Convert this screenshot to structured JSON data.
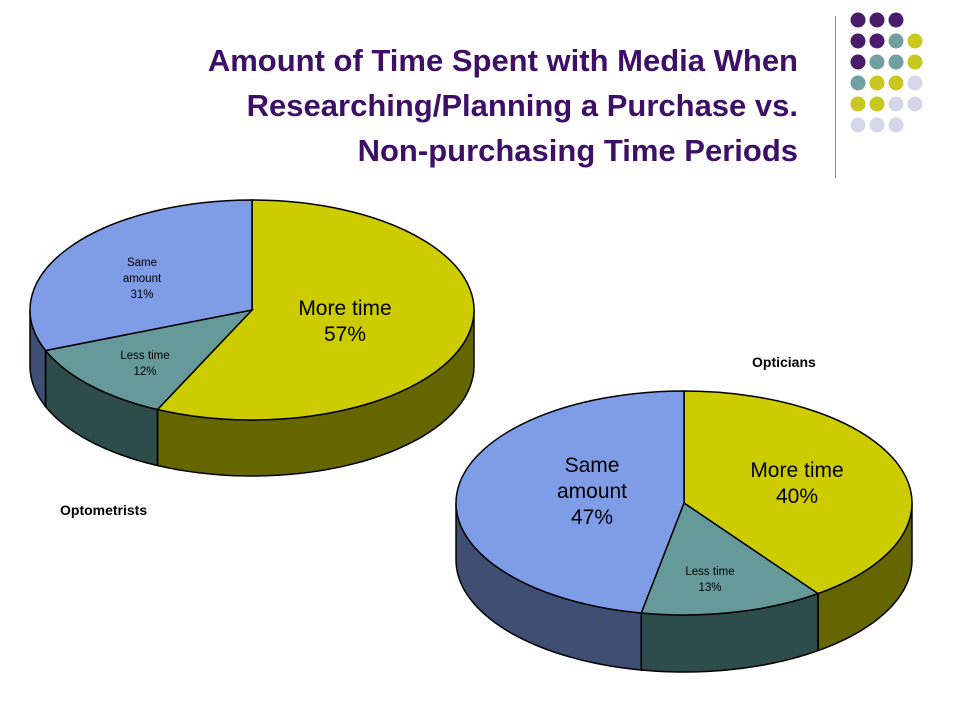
{
  "slide": {
    "title_lines": [
      "Amount of Time Spent with Media When",
      "Researching/Planning a Purchase vs.",
      "Non-purchasing Time Periods"
    ]
  },
  "decor": {
    "dot_rows": [
      [
        "purple",
        "purple",
        "purple"
      ],
      [
        "purple",
        "purple",
        "teal",
        "lime"
      ],
      [
        "purple",
        "teal",
        "teal",
        "lime"
      ],
      [
        "teal",
        "lime",
        "lime",
        "lavender"
      ],
      [
        "lime",
        "lime",
        "lavender",
        "lavender"
      ],
      [
        "lavender",
        "lavender",
        "lavender"
      ]
    ],
    "dot_colors": {
      "purple": "#4a1a6b",
      "teal": "#6f9fa0",
      "lime": "#c8c820",
      "lavender": "#d6d6ea"
    }
  },
  "chart_data": [
    {
      "type": "pie",
      "title": "Optometrists",
      "style": "3d",
      "slices": [
        {
          "label_line1": "More time",
          "label_line2": "57%",
          "value": 57,
          "color": "#cccc00",
          "side_color": "#666600"
        },
        {
          "label_line1": "Less time",
          "label_line2": "12%",
          "value": 12,
          "color": "#669999",
          "side_color": "#2f4c4c"
        },
        {
          "label_line1": "Same amount",
          "label_line2": "31%",
          "value": 31,
          "color": "#7f9ce6",
          "side_color": "#3f4e73"
        }
      ]
    },
    {
      "type": "pie",
      "title": "Opticians",
      "style": "3d",
      "slices": [
        {
          "label_line1": "More time",
          "label_line2": "40%",
          "value": 40,
          "color": "#cccc00",
          "side_color": "#666600"
        },
        {
          "label_line1": "Less time",
          "label_line2": "13%",
          "value": 13,
          "color": "#669999",
          "side_color": "#2f4c4c"
        },
        {
          "label_line1": "Same amount",
          "label_line2": "47%",
          "value": 47,
          "color": "#7f9ce6",
          "side_color": "#3f4e73"
        }
      ]
    }
  ]
}
